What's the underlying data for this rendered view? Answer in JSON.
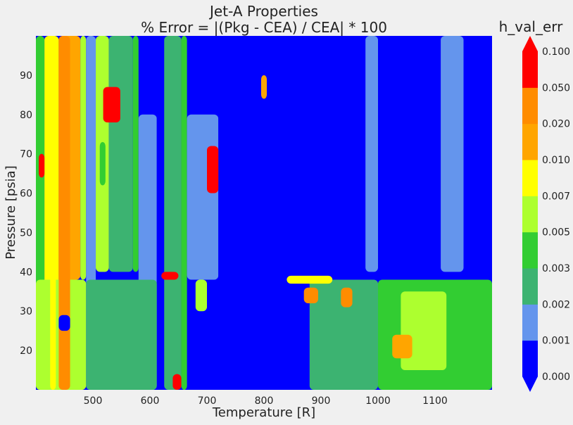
{
  "figure": {
    "background": "#f0f0f0"
  },
  "chart_data": {
    "type": "heatmap",
    "subtype": "filled-contour",
    "title_line1": "Jet-A Properties",
    "title_line2": "% Error = |(Pkg - CEA) / CEA| * 100",
    "xlabel": "Temperature [R]",
    "ylabel": "Pressure [psia]",
    "xlim": [
      400,
      1200
    ],
    "ylim": [
      10,
      100
    ],
    "xticks": [
      500,
      600,
      700,
      800,
      900,
      1000,
      1100
    ],
    "yticks": [
      20,
      30,
      40,
      50,
      60,
      70,
      80,
      90
    ],
    "grid": false,
    "colorbar": {
      "title": "h_val_err",
      "extend": "both",
      "levels": [
        0.0,
        0.001,
        0.002,
        0.003,
        0.005,
        0.007,
        0.01,
        0.02,
        0.05,
        0.1
      ],
      "tick_labels": [
        "0.000",
        "0.001",
        "0.002",
        "0.003",
        "0.005",
        "0.007",
        "0.010",
        "0.020",
        "0.050",
        "0.100"
      ],
      "colors": [
        "#0000ff",
        "#6495ed",
        "#3cb371",
        "#32cd32",
        "#adff2f",
        "#ffff00",
        "#ffa500",
        "#ff8c00",
        "#ff0000"
      ],
      "under_color": "#0000ff",
      "over_color": "#ff0000"
    },
    "regions": [
      {
        "x": [
          400,
          415
        ],
        "y": [
          10,
          100
        ],
        "level": 3
      },
      {
        "x": [
          415,
          440
        ],
        "y": [
          10,
          100
        ],
        "level": 5
      },
      {
        "x": [
          440,
          478
        ],
        "y": [
          38,
          100
        ],
        "level": 6
      },
      {
        "x": [
          478,
          488
        ],
        "y": [
          38,
          100
        ],
        "level": 4
      },
      {
        "x": [
          488,
          505
        ],
        "y": [
          10,
          100
        ],
        "level": 1
      },
      {
        "x": [
          505,
          528
        ],
        "y": [
          40,
          100
        ],
        "level": 4
      },
      {
        "x": [
          528,
          570
        ],
        "y": [
          40,
          100
        ],
        "level": 2
      },
      {
        "x": [
          570,
          580
        ],
        "y": [
          40,
          100
        ],
        "level": 3
      },
      {
        "x": [
          580,
          612
        ],
        "y": [
          10,
          80
        ],
        "level": 1
      },
      {
        "x": [
          612,
          625
        ],
        "y": [
          10,
          100
        ],
        "level": 0
      },
      {
        "x": [
          625,
          655
        ],
        "y": [
          10,
          100
        ],
        "level": 2
      },
      {
        "x": [
          655,
          665
        ],
        "y": [
          10,
          100
        ],
        "level": 3
      },
      {
        "x": [
          665,
          720
        ],
        "y": [
          38,
          80
        ],
        "level": 1
      },
      {
        "x": [
          720,
          1110
        ],
        "y": [
          10,
          100
        ],
        "level": 0
      },
      {
        "x": [
          978,
          1000
        ],
        "y": [
          40,
          100
        ],
        "level": 1
      },
      {
        "x": [
          1110,
          1150
        ],
        "y": [
          40,
          100
        ],
        "level": 1
      },
      {
        "x": [
          1150,
          1200
        ],
        "y": [
          40,
          100
        ],
        "level": 0
      },
      {
        "x": [
          1000,
          1200
        ],
        "y": [
          10,
          38
        ],
        "level": 3
      },
      {
        "x": [
          1040,
          1120
        ],
        "y": [
          15,
          35
        ],
        "level": 4
      },
      {
        "x": [
          880,
          1000
        ],
        "y": [
          10,
          38
        ],
        "level": 2
      },
      {
        "x": [
          400,
          488
        ],
        "y": [
          10,
          38
        ],
        "level": 4
      },
      {
        "x": [
          488,
          612
        ],
        "y": [
          10,
          38
        ],
        "level": 2
      },
      {
        "x": [
          440,
          460
        ],
        "y": [
          10,
          100
        ],
        "level": 7
      },
      {
        "x": [
          460,
          475
        ],
        "y": [
          40,
          100
        ],
        "level": 6
      },
      {
        "x": [
          425,
          435
        ],
        "y": [
          10,
          100
        ],
        "level": 5
      },
      {
        "x": [
          518,
          548
        ],
        "y": [
          78,
          87
        ],
        "level": 8
      },
      {
        "x": [
          512,
          522
        ],
        "y": [
          62,
          73
        ],
        "level": 3
      },
      {
        "x": [
          640,
          655
        ],
        "y": [
          10,
          14
        ],
        "level": 8
      },
      {
        "x": [
          620,
          650
        ],
        "y": [
          38,
          40
        ],
        "level": 8
      },
      {
        "x": [
          680,
          700
        ],
        "y": [
          30,
          38
        ],
        "level": 4
      },
      {
        "x": [
          1025,
          1060
        ],
        "y": [
          18,
          24
        ],
        "level": 6
      },
      {
        "x": [
          870,
          895
        ],
        "y": [
          32,
          36
        ],
        "level": 7
      },
      {
        "x": [
          935,
          955
        ],
        "y": [
          31,
          36
        ],
        "level": 7
      },
      {
        "x": [
          795,
          805
        ],
        "y": [
          84,
          90
        ],
        "level": 6
      },
      {
        "x": [
          405,
          415
        ],
        "y": [
          64,
          70
        ],
        "level": 8
      },
      {
        "x": [
          440,
          460
        ],
        "y": [
          25,
          29
        ],
        "level": 0
      },
      {
        "x": [
          700,
          720
        ],
        "y": [
          60,
          72
        ],
        "level": 8
      },
      {
        "x": [
          840,
          920
        ],
        "y": [
          37,
          39
        ],
        "level": 5
      }
    ]
  }
}
